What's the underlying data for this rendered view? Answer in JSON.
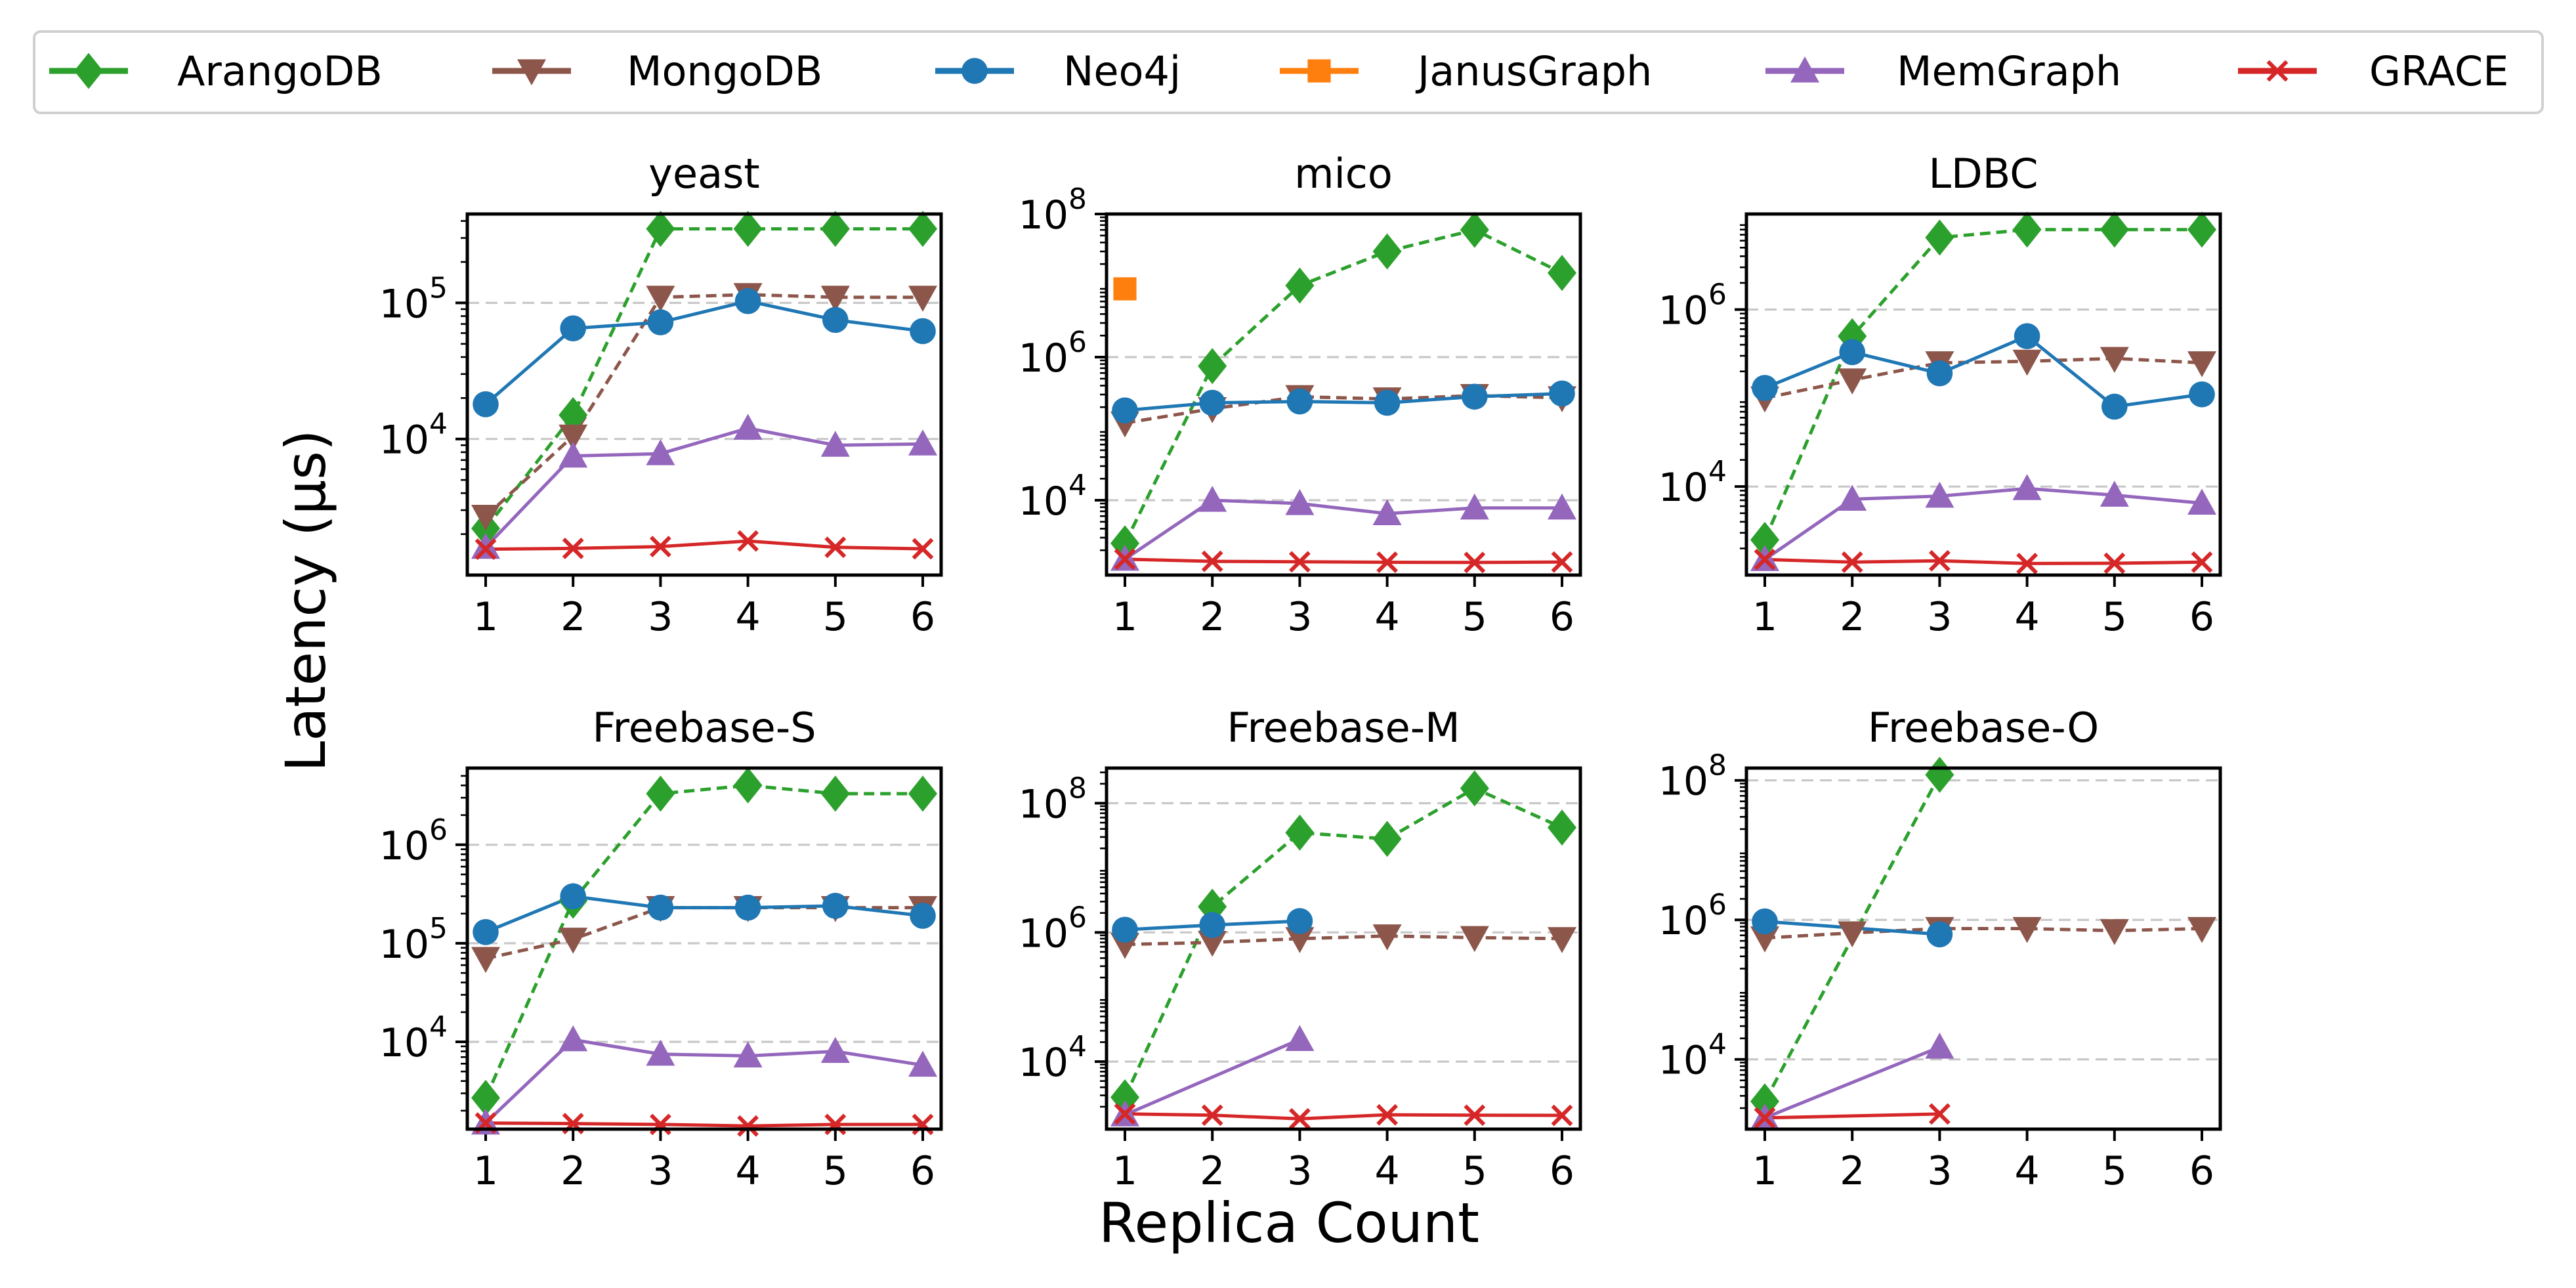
{
  "chart_data": {
    "type": "line",
    "xlabel": "Replica Count",
    "ylabel": "Latency (μs)",
    "legend_position": "top",
    "y_scale": "log",
    "grid": "horizontal dashed at major ticks",
    "x": [
      1,
      2,
      3,
      4,
      5,
      6
    ],
    "series_styles": [
      {
        "name": "ArangoDB",
        "color": "#2ca02c",
        "marker": "diamond",
        "line": "dashed"
      },
      {
        "name": "MongoDB",
        "color": "#8c564b",
        "marker": "triangle-down",
        "line": "dashed"
      },
      {
        "name": "Neo4j",
        "color": "#1f77b4",
        "marker": "circle",
        "line": "solid"
      },
      {
        "name": "JanusGraph",
        "color": "#ff7f0e",
        "marker": "square",
        "line": "solid"
      },
      {
        "name": "MemGraph",
        "color": "#9467bd",
        "marker": "triangle-up",
        "line": "solid"
      },
      {
        "name": "GRACE",
        "color": "#d62728",
        "marker": "x",
        "line": "solid"
      }
    ],
    "panels": [
      {
        "title": "yeast",
        "ylim": [
          1000,
          450000
        ],
        "yticks": [
          {
            "value": 10000,
            "base": "10",
            "exp": "4"
          },
          {
            "value": 100000,
            "base": "10",
            "exp": "5"
          }
        ],
        "series": [
          {
            "name": "ArangoDB",
            "values": [
              2200,
              15000,
              350000,
              350000,
              350000,
              350000
            ]
          },
          {
            "name": "MongoDB",
            "values": [
              2700,
              10500,
              110000,
              115000,
              110000,
              110000
            ]
          },
          {
            "name": "Neo4j",
            "values": [
              18000,
              65000,
              72000,
              103000,
              75000,
              62000
            ]
          },
          {
            "name": "MemGraph",
            "values": [
              1600,
              7500,
              7800,
              12000,
              9000,
              9200
            ]
          },
          {
            "name": "GRACE",
            "values": [
              1550,
              1570,
              1620,
              1780,
              1600,
              1560
            ]
          }
        ]
      },
      {
        "title": "mico",
        "ylim": [
          900,
          100000000
        ],
        "yticks": [
          {
            "value": 10000,
            "base": "10",
            "exp": "4"
          },
          {
            "value": 1000000,
            "base": "10",
            "exp": "6"
          },
          {
            "value": 100000000,
            "base": "10",
            "exp": "8"
          }
        ],
        "series": [
          {
            "name": "ArangoDB",
            "values": [
              2500,
              750000,
              10000000,
              30000000,
              60000000,
              15000000
            ]
          },
          {
            "name": "MongoDB",
            "values": [
              120000,
              190000,
              280000,
              260000,
              290000,
              270000
            ]
          },
          {
            "name": "Neo4j",
            "values": [
              180000,
              230000,
              240000,
              230000,
              280000,
              310000
            ]
          },
          {
            "name": "JanusGraph",
            "values": [
              9000000,
              null,
              null,
              null,
              null,
              null
            ]
          },
          {
            "name": "MemGraph",
            "values": [
              1500,
              10000,
              9000,
              6500,
              7800,
              7800
            ]
          },
          {
            "name": "GRACE",
            "values": [
              1500,
              1400,
              1380,
              1360,
              1350,
              1370
            ]
          }
        ]
      },
      {
        "title": "LDBC",
        "ylim": [
          1000,
          12000000
        ],
        "yticks": [
          {
            "value": 10000,
            "base": "10",
            "exp": "4"
          },
          {
            "value": 1000000,
            "base": "10",
            "exp": "6"
          }
        ],
        "series": [
          {
            "name": "ArangoDB",
            "values": [
              2500,
              500000,
              6500000,
              8000000,
              8000000,
              8000000
            ]
          },
          {
            "name": "MongoDB",
            "values": [
              100000,
              160000,
              250000,
              260000,
              280000,
              250000
            ]
          },
          {
            "name": "Neo4j",
            "values": [
              130000,
              330000,
              190000,
              500000,
              80000,
              110000
            ]
          },
          {
            "name": "MemGraph",
            "values": [
              1500,
              7200,
              7800,
              9500,
              8000,
              6500
            ]
          },
          {
            "name": "GRACE",
            "values": [
              1500,
              1400,
              1450,
              1350,
              1360,
              1400
            ]
          }
        ]
      },
      {
        "title": "Freebase-S",
        "ylim": [
          1300,
          6000000
        ],
        "yticks": [
          {
            "value": 10000,
            "base": "10",
            "exp": "4"
          },
          {
            "value": 100000,
            "base": "10",
            "exp": "5"
          },
          {
            "value": 1000000,
            "base": "10",
            "exp": "6"
          }
        ],
        "series": [
          {
            "name": "ArangoDB",
            "values": [
              2700,
              270000,
              3300000,
              4000000,
              3300000,
              3300000
            ]
          },
          {
            "name": "MongoDB",
            "values": [
              70000,
              110000,
              230000,
              230000,
              230000,
              230000
            ]
          },
          {
            "name": "Neo4j",
            "values": [
              130000,
              300000,
              230000,
              230000,
              240000,
              190000
            ]
          },
          {
            "name": "MemGraph",
            "values": [
              1500,
              10500,
              7500,
              7200,
              8000,
              5800
            ]
          },
          {
            "name": "GRACE",
            "values": [
              1500,
              1480,
              1450,
              1400,
              1450,
              1450
            ]
          }
        ]
      },
      {
        "title": "Freebase-M",
        "ylim": [
          900,
          350000000
        ],
        "yticks": [
          {
            "value": 10000,
            "base": "10",
            "exp": "4"
          },
          {
            "value": 1000000,
            "base": "10",
            "exp": "6"
          },
          {
            "value": 100000000,
            "base": "10",
            "exp": "8"
          }
        ],
        "series": [
          {
            "name": "ArangoDB",
            "values": [
              2800,
              2500000,
              35000000,
              28000000,
              170000000,
              42000000
            ]
          },
          {
            "name": "MongoDB",
            "values": [
              650000,
              700000,
              800000,
              880000,
              830000,
              800000
            ]
          },
          {
            "name": "Neo4j",
            "values": [
              1100000,
              1300000,
              1500000,
              null,
              null,
              null
            ]
          },
          {
            "name": "MemGraph",
            "values": [
              1500,
              null,
              22000,
              null,
              null,
              null
            ]
          },
          {
            "name": "GRACE",
            "values": [
              1550,
              1480,
              1300,
              1500,
              1480,
              1470
            ]
          }
        ]
      },
      {
        "title": "Freebase-O",
        "ylim": [
          1000,
          150000000
        ],
        "yticks": [
          {
            "value": 10000,
            "base": "10",
            "exp": "4"
          },
          {
            "value": 1000000,
            "base": "10",
            "exp": "6"
          },
          {
            "value": 100000000,
            "base": "10",
            "exp": "8"
          }
        ],
        "series": [
          {
            "name": "ArangoDB",
            "values": [
              2500,
              null,
              120000000,
              null,
              null,
              null
            ]
          },
          {
            "name": "MongoDB",
            "values": [
              550000,
              650000,
              750000,
              750000,
              700000,
              750000
            ]
          },
          {
            "name": "Neo4j",
            "values": [
              950000,
              null,
              620000,
              null,
              null,
              null
            ]
          },
          {
            "name": "MemGraph",
            "values": [
              1450,
              null,
              15000,
              null,
              null,
              null
            ]
          },
          {
            "name": "GRACE",
            "values": [
              1450,
              null,
              1650,
              null,
              null,
              null
            ]
          }
        ]
      }
    ]
  }
}
